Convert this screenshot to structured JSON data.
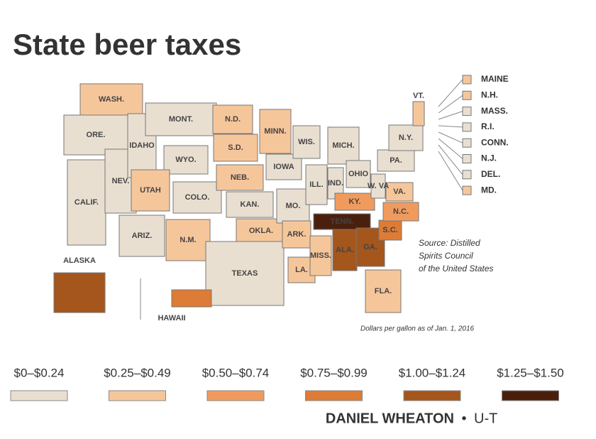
{
  "title": "State beer taxes",
  "legend": [
    {
      "label": "$0–$0.24",
      "color": "#e9dfd1"
    },
    {
      "label": "$0.25–$0.49",
      "color": "#f6c69b"
    },
    {
      "label": "$0.50–$0.74",
      "color": "#f09b5e"
    },
    {
      "label": "$0.75–$0.99",
      "color": "#dc7c36"
    },
    {
      "label": "$1.00–$1.24",
      "color": "#a4561c"
    },
    {
      "label": "$1.25–$1.50",
      "color": "#4a200d"
    }
  ],
  "states": [
    {
      "label": "WASH.",
      "tier": 1
    },
    {
      "label": "ORE.",
      "tier": 0
    },
    {
      "label": "CALIF.",
      "tier": 0
    },
    {
      "label": "NEV.",
      "tier": 0
    },
    {
      "label": "IDAHO",
      "tier": 0
    },
    {
      "label": "MONT.",
      "tier": 0
    },
    {
      "label": "WYO.",
      "tier": 0
    },
    {
      "label": "UTAH",
      "tier": 1
    },
    {
      "label": "COLO.",
      "tier": 0
    },
    {
      "label": "ARIZ.",
      "tier": 0
    },
    {
      "label": "N.M.",
      "tier": 1
    },
    {
      "label": "N.D.",
      "tier": 1
    },
    {
      "label": "S.D.",
      "tier": 1
    },
    {
      "label": "NEB.",
      "tier": 1
    },
    {
      "label": "KAN.",
      "tier": 0
    },
    {
      "label": "OKLA.",
      "tier": 1
    },
    {
      "label": "TEXAS",
      "tier": 0
    },
    {
      "label": "MINN.",
      "tier": 1
    },
    {
      "label": "IOWA",
      "tier": 0
    },
    {
      "label": "MO.",
      "tier": 0
    },
    {
      "label": "ARK.",
      "tier": 1
    },
    {
      "label": "LA.",
      "tier": 1
    },
    {
      "label": "WIS.",
      "tier": 0
    },
    {
      "label": "ILL.",
      "tier": 0
    },
    {
      "label": "MICH.",
      "tier": 0
    },
    {
      "label": "IND.",
      "tier": 0
    },
    {
      "label": "OHIO",
      "tier": 0
    },
    {
      "label": "KY.",
      "tier": 2
    },
    {
      "label": "TENN.",
      "tier": 5
    },
    {
      "label": "MISS.",
      "tier": 1
    },
    {
      "label": "ALA.",
      "tier": 4
    },
    {
      "label": "GA.",
      "tier": 4
    },
    {
      "label": "FLA.",
      "tier": 1
    },
    {
      "label": "S.C.",
      "tier": 3
    },
    {
      "label": "N.C.",
      "tier": 2
    },
    {
      "label": "VA.",
      "tier": 1
    },
    {
      "label": "W. VA",
      "tier": 0
    },
    {
      "label": "PA.",
      "tier": 0
    },
    {
      "label": "N.Y.",
      "tier": 0
    },
    {
      "label": "VT.",
      "tier": 1
    },
    {
      "label": "ALASKA",
      "tier": 4
    },
    {
      "label": "HAWAII",
      "tier": 3
    }
  ],
  "small_states": [
    {
      "label": "MAINE",
      "tier": 1
    },
    {
      "label": "N.H.",
      "tier": 1
    },
    {
      "label": "MASS.",
      "tier": 0
    },
    {
      "label": "R.I.",
      "tier": 0
    },
    {
      "label": "CONN.",
      "tier": 0
    },
    {
      "label": "N.J.",
      "tier": 0
    },
    {
      "label": "DEL.",
      "tier": 0
    },
    {
      "label": "MD.",
      "tier": 1
    }
  ],
  "source": [
    "Source: Distilled",
    "Spirits Council",
    "of the United States"
  ],
  "note": "Dollars per gallon as of Jan. 1, 2016",
  "credit": {
    "name": "DANIEL WHEATON",
    "separator": "•",
    "org": "U-T"
  }
}
